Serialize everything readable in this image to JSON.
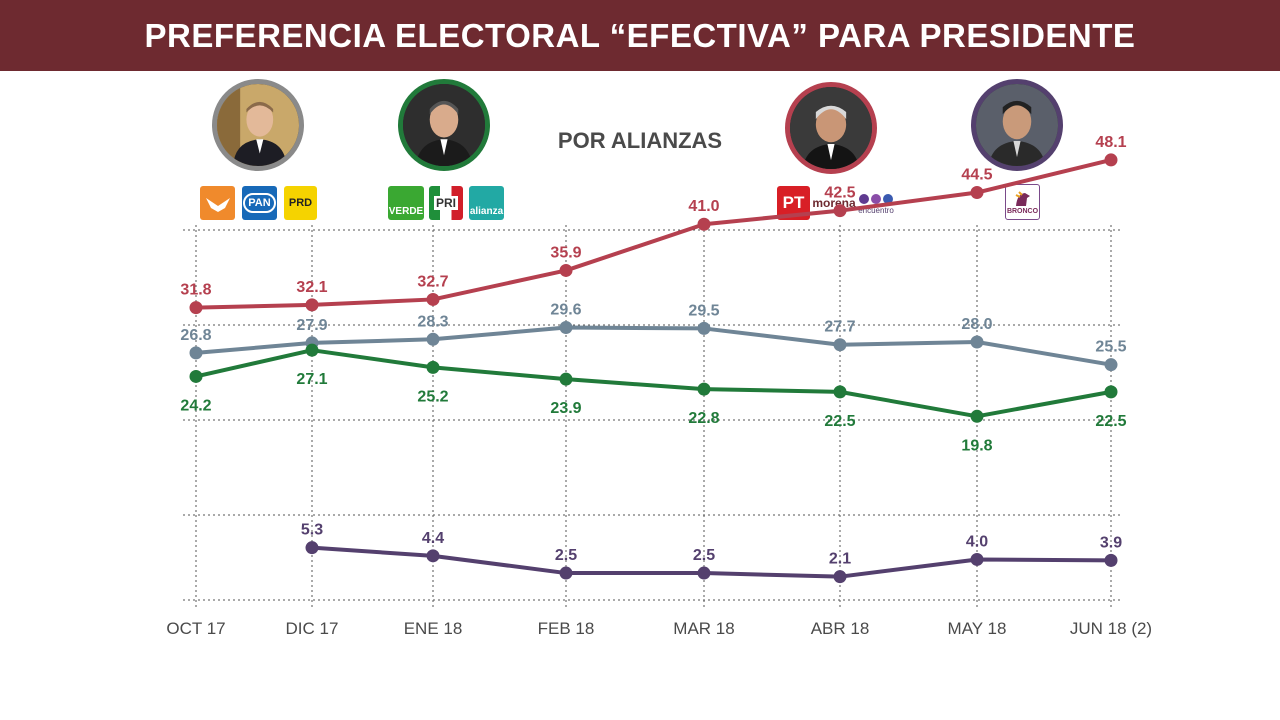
{
  "header": {
    "title": "PREFERENCIA ELECTORAL “EFECTIVA” PARA PRESIDENTE"
  },
  "subtitle": "POR ALIANZAS",
  "logos": {
    "mc": "",
    "pan": "PAN",
    "prd": "PRD",
    "verde": "VERDE",
    "pri": "PRI",
    "alianza": "alianza",
    "pt": "PT",
    "morena": "morena",
    "encuentro": "encuentro",
    "bronco": "BRONCO"
  },
  "chart_data": {
    "type": "line",
    "categories": [
      "OCT 17",
      "DIC 17",
      "ENE 18",
      "FEB 18",
      "MAR 18",
      "ABR 18",
      "MAY 18",
      "JUN 18 (2)"
    ],
    "series": [
      {
        "color": "#b5404f",
        "values": [
          31.8,
          32.1,
          32.7,
          35.9,
          41.0,
          42.5,
          44.5,
          48.1
        ],
        "labels": [
          "31.8",
          "32.1",
          "32.7",
          "35.9",
          "41.0",
          "42.5",
          "44.5",
          "48.1"
        ],
        "label_pos": "above"
      },
      {
        "color": "#6f8596",
        "values": [
          26.8,
          27.9,
          28.3,
          29.6,
          29.5,
          27.7,
          28.0,
          25.5
        ],
        "labels": [
          "26.8",
          "27.9",
          "28.3",
          "29.6",
          "29.5",
          "27.7",
          "28.0",
          "25.5"
        ],
        "label_pos": "above"
      },
      {
        "color": "#217a3a",
        "values": [
          24.2,
          27.1,
          25.2,
          23.9,
          22.8,
          22.5,
          19.8,
          22.5
        ],
        "labels": [
          "24.2",
          "27.1",
          "25.2",
          "23.9",
          "22.8",
          "22.5",
          "19.8",
          "22.5"
        ],
        "label_pos": "below"
      },
      {
        "color": "#54406e",
        "values": [
          null,
          5.3,
          4.4,
          2.5,
          2.5,
          2.1,
          4.0,
          3.9
        ],
        "labels": [
          "",
          "5.3",
          "4.4",
          "2.5",
          "2.5",
          "2.1",
          "4.0",
          "3.9"
        ],
        "label_pos": "above"
      }
    ],
    "title": "PREFERENCIA ELECTORAL “EFECTIVA” PARA PRESIDENTE",
    "subtitle": "POR ALIANZAS",
    "xlabel": "",
    "ylabel": "",
    "grid": true
  },
  "colors": {
    "banner": "#6e2a30",
    "anaya": "#8a8a8a",
    "meade": "#217a3a",
    "amlo": "#b5404f",
    "bronco": "#54406e",
    "grid": "#555555"
  }
}
